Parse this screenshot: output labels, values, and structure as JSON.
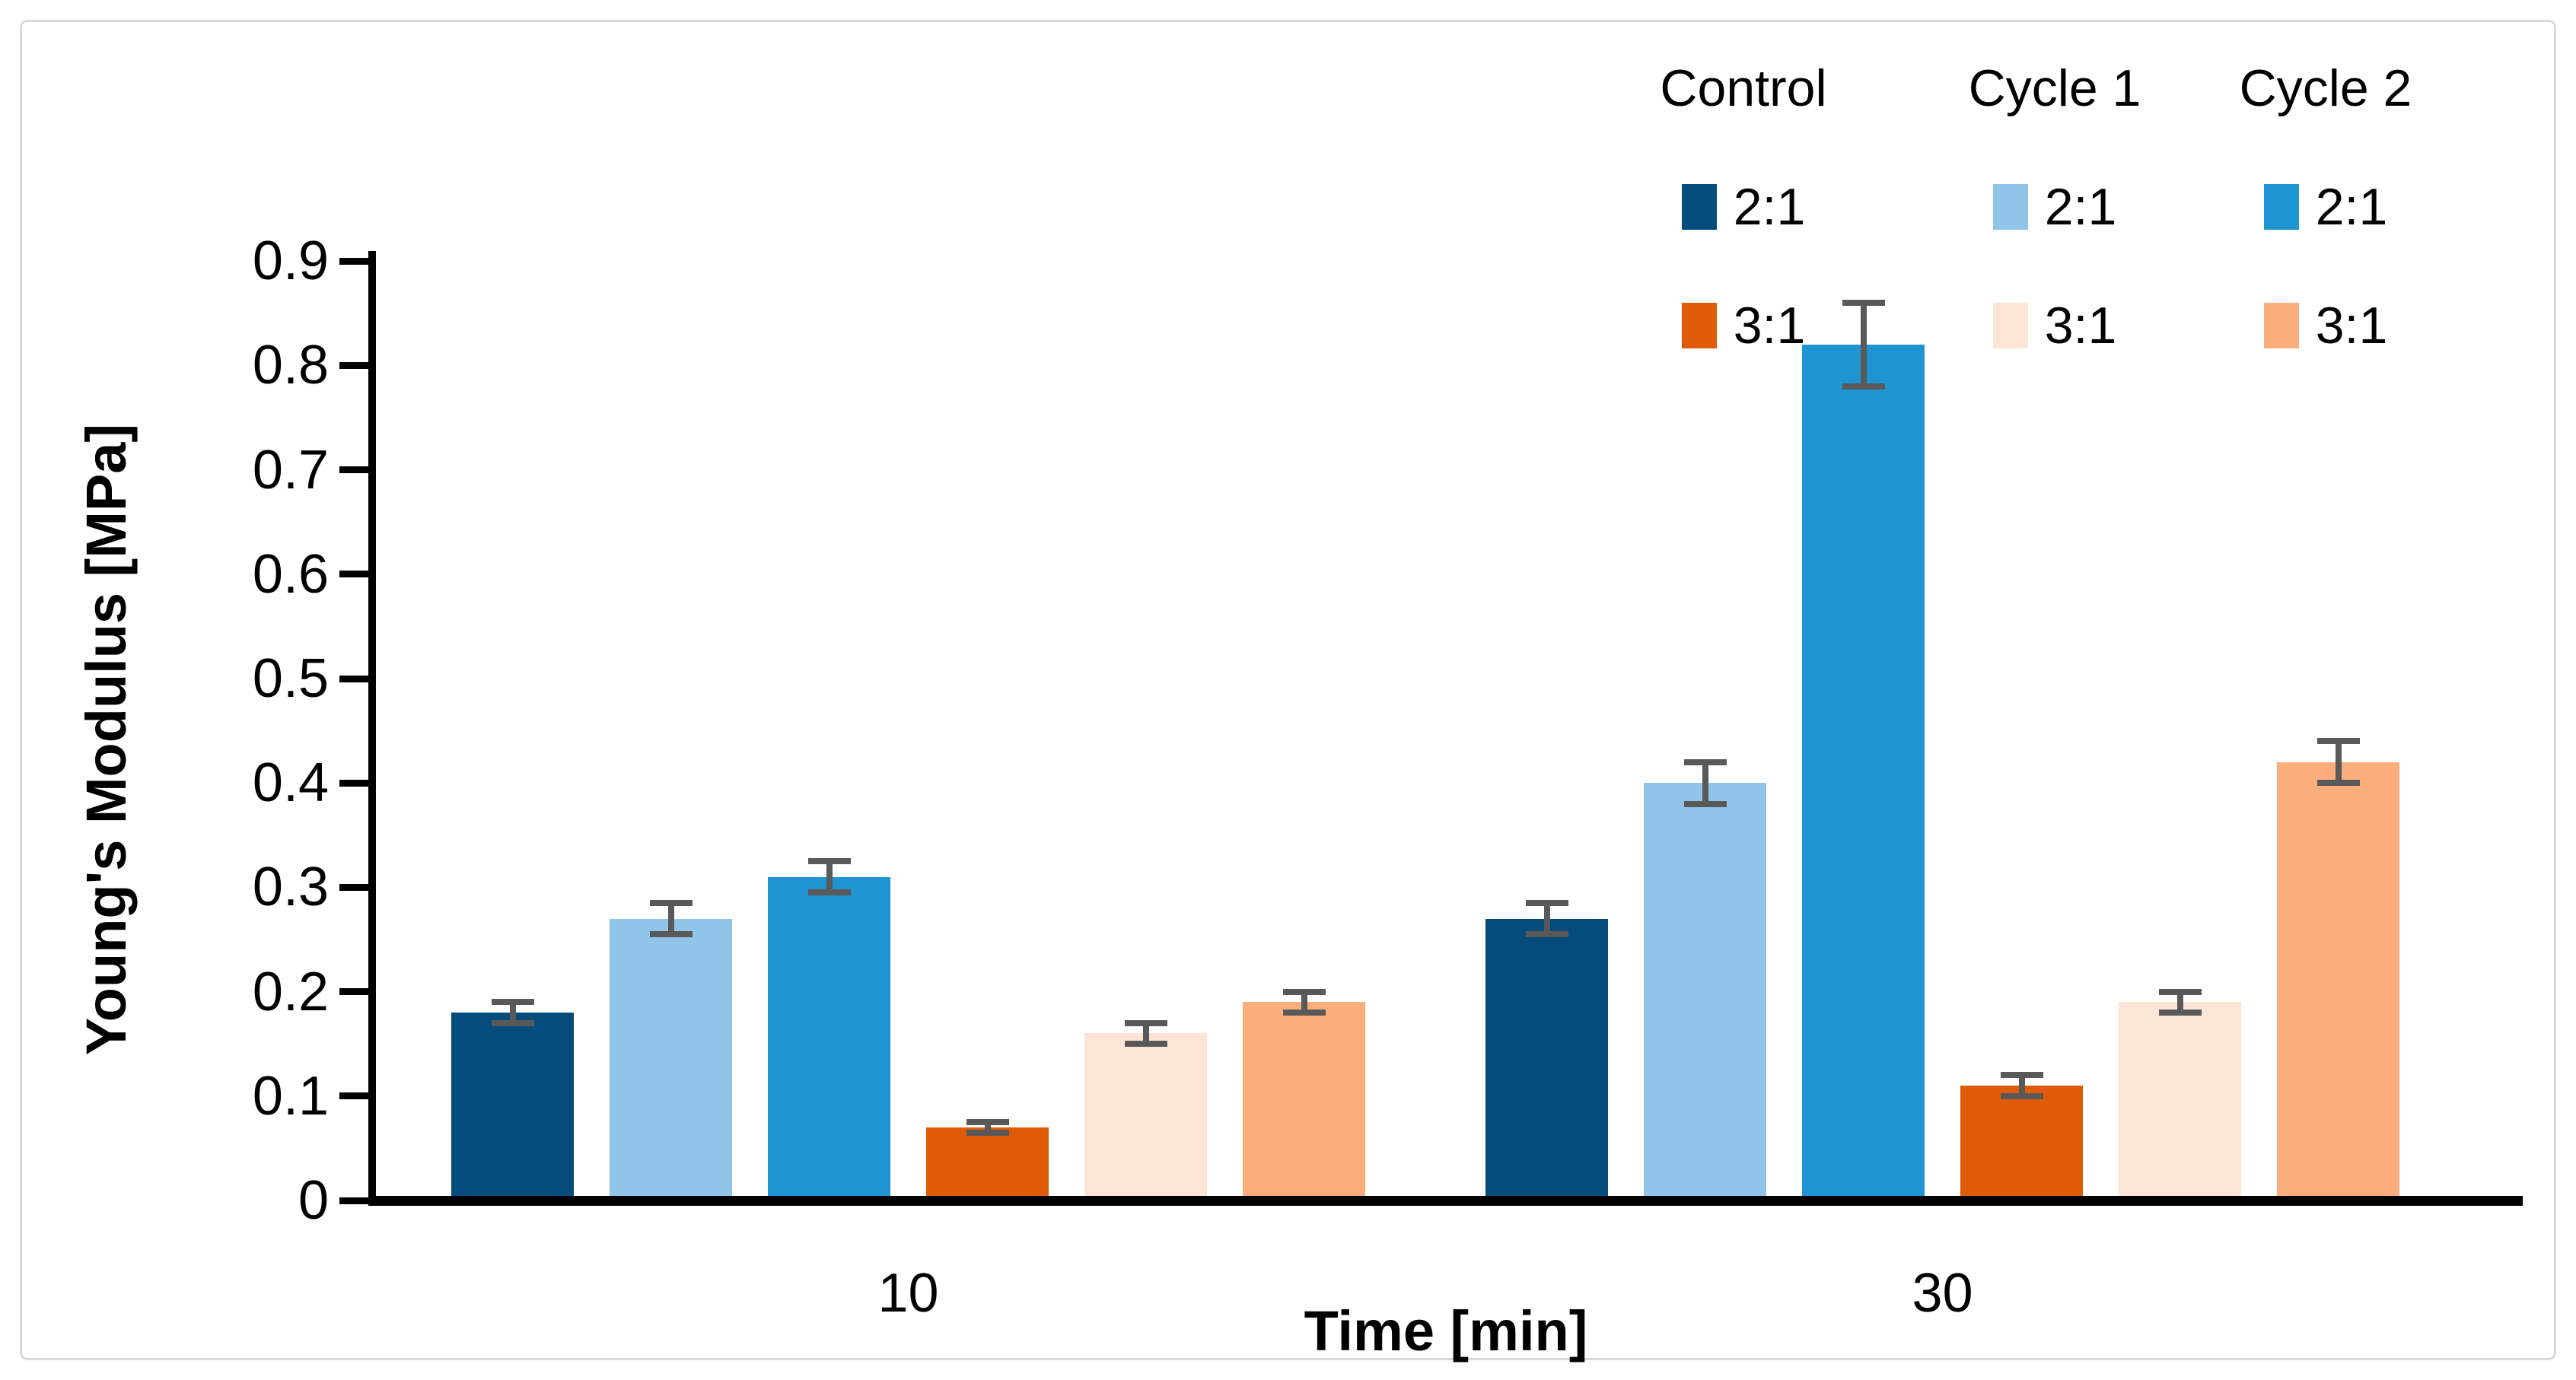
{
  "figure": {
    "background_color": "#ffffff",
    "border_color": "#d9d9d9",
    "axis_color": "#000000",
    "error_bar_color": "#595959"
  },
  "chart_data": {
    "type": "bar",
    "title": "",
    "xlabel": "Time [min]",
    "ylabel": "Young's Modulus [MPa]",
    "ylim": [
      0,
      0.9
    ],
    "ytick_step": 0.1,
    "ytick_labels": [
      "0",
      "0.1",
      "0.2",
      "0.3",
      "0.4",
      "0.5",
      "0.6",
      "0.7",
      "0.8",
      "0.9"
    ],
    "categories": [
      "10",
      "30"
    ],
    "grid": false,
    "legend_position": "top-right",
    "legend": {
      "groups": [
        {
          "header": "Control",
          "entries": [
            {
              "label": "2:1",
              "color": "#034C7C"
            },
            {
              "label": "3:1",
              "color": "#DF5B05"
            }
          ]
        },
        {
          "header": "Cycle 1",
          "entries": [
            {
              "label": "2:1",
              "color": "#90C4E8"
            },
            {
              "label": "3:1",
              "color": "#FCE5D5"
            }
          ]
        },
        {
          "header": "Cycle 2",
          "entries": [
            {
              "label": "2:1",
              "color": "#1E94D2"
            },
            {
              "label": "3:1",
              "color": "#FBAE7C"
            }
          ]
        }
      ]
    },
    "series": [
      {
        "name": "Control 2:1",
        "color": "#034C7C",
        "values": [
          0.18,
          0.27
        ],
        "errors": [
          0.01,
          0.015
        ]
      },
      {
        "name": "Cycle 1 2:1",
        "color": "#90C4E8",
        "values": [
          0.27,
          0.4
        ],
        "errors": [
          0.015,
          0.02
        ]
      },
      {
        "name": "Cycle 2 2:1",
        "color": "#1E94D2",
        "values": [
          0.31,
          0.82
        ],
        "errors": [
          0.015,
          0.04
        ]
      },
      {
        "name": "Control 3:1",
        "color": "#DF5B05",
        "values": [
          0.07,
          0.11
        ],
        "errors": [
          0.005,
          0.01
        ]
      },
      {
        "name": "Cycle 1 3:1",
        "color": "#FCE5D5",
        "values": [
          0.16,
          0.19
        ],
        "errors": [
          0.01,
          0.01
        ]
      },
      {
        "name": "Cycle 2 3:1",
        "color": "#FBAE7C",
        "values": [
          0.19,
          0.42
        ],
        "errors": [
          0.01,
          0.02
        ]
      }
    ]
  }
}
